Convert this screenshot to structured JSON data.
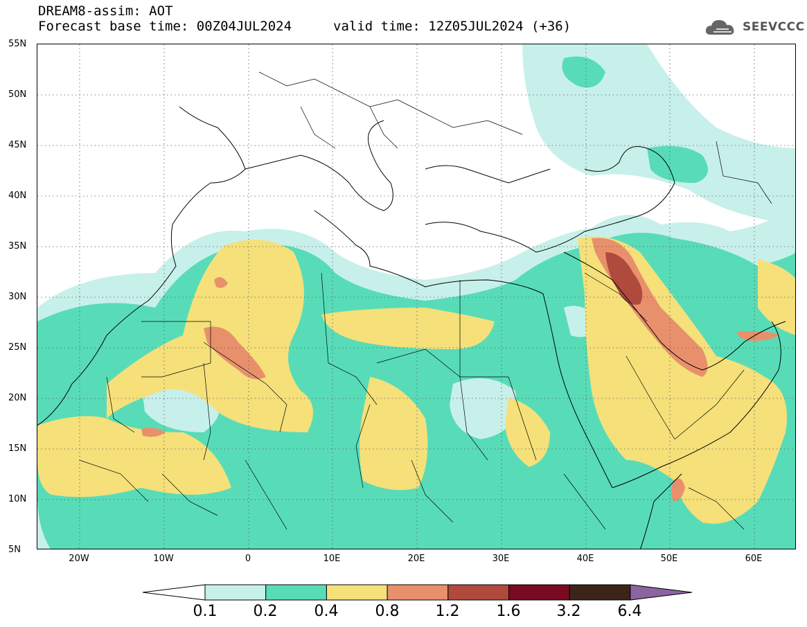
{
  "header": {
    "title": "DREAM8-assim: AOT",
    "base_time": "Forecast base time: 00Z04JUL2024",
    "valid_time": "valid time: 12Z05JUL2024 (+36)"
  },
  "logo": {
    "text": "SEEVCCC",
    "icon": "cloud-icon"
  },
  "map": {
    "lat_labels": [
      "55N",
      "50N",
      "45N",
      "40N",
      "35N",
      "30N",
      "25N",
      "20N",
      "15N",
      "10N",
      "5N"
    ],
    "lon_labels": [
      "20W",
      "10W",
      "0",
      "10E",
      "20E",
      "30E",
      "40E",
      "50E",
      "60E"
    ],
    "lon_range": [
      -25,
      65
    ],
    "lat_range": [
      5,
      55
    ]
  },
  "colorbar": {
    "labels": [
      "0.1",
      "0.2",
      "0.4",
      "0.8",
      "1.2",
      "1.6",
      "3.2",
      "6.4"
    ],
    "colors": [
      "#ffffff",
      "#c8f0ea",
      "#58dcb8",
      "#f5e07a",
      "#e8906c",
      "#b04a3c",
      "#7a0a22",
      "#3c2418",
      "#8c64a0"
    ]
  }
}
